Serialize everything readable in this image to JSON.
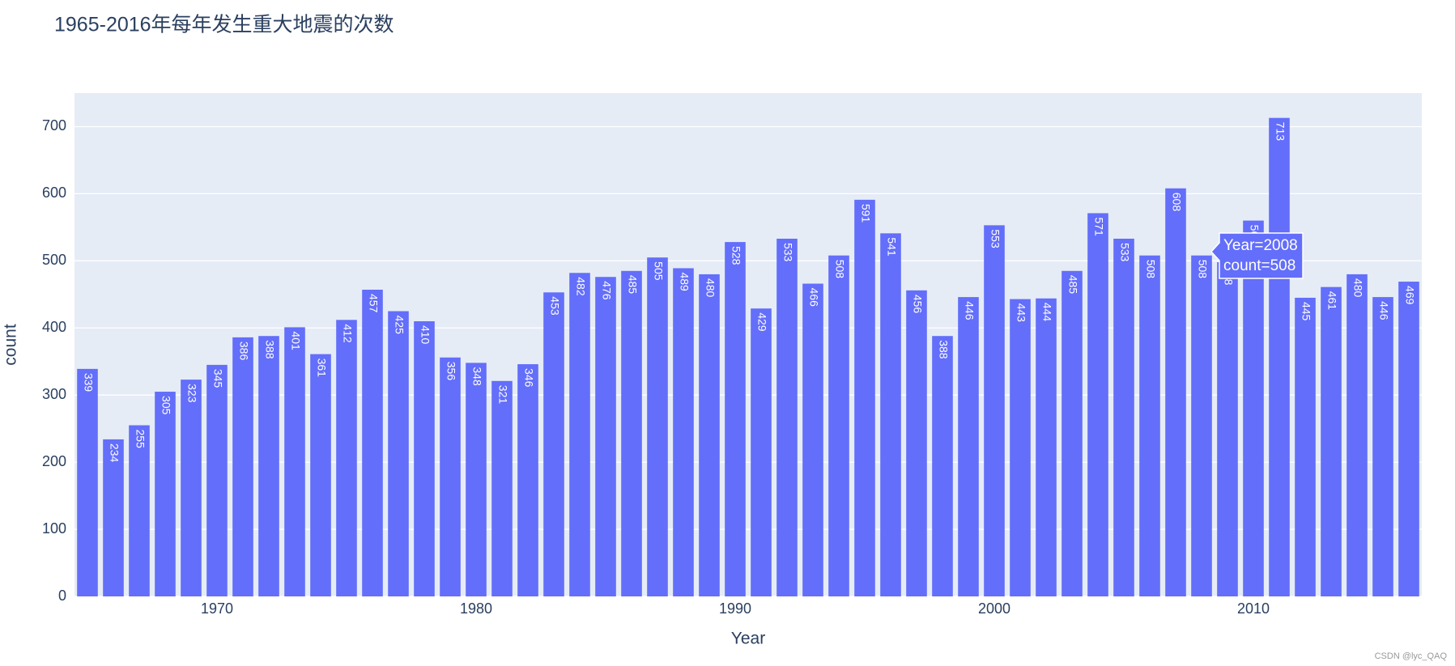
{
  "chart_data": {
    "type": "bar",
    "title": "1965-2016年每年发生重大地震的次数",
    "x_label": "Year",
    "y_label": "count",
    "x": [
      1965,
      1966,
      1967,
      1968,
      1969,
      1970,
      1971,
      1972,
      1973,
      1974,
      1975,
      1976,
      1977,
      1978,
      1979,
      1980,
      1981,
      1982,
      1983,
      1984,
      1985,
      1986,
      1987,
      1988,
      1989,
      1990,
      1991,
      1992,
      1993,
      1994,
      1995,
      1996,
      1997,
      1998,
      1999,
      2000,
      2001,
      2002,
      2003,
      2004,
      2005,
      2006,
      2007,
      2008,
      2009,
      2010,
      2011,
      2012,
      2013,
      2014,
      2015,
      2016
    ],
    "values": [
      339,
      234,
      255,
      305,
      323,
      345,
      386,
      388,
      401,
      361,
      412,
      457,
      425,
      410,
      356,
      348,
      321,
      346,
      453,
      482,
      476,
      485,
      505,
      489,
      480,
      528,
      429,
      533,
      466,
      508,
      591,
      541,
      456,
      388,
      446,
      553,
      443,
      444,
      485,
      571,
      533,
      508,
      608,
      508,
      498,
      560,
      713,
      445,
      461,
      480,
      446,
      469
    ],
    "color": "#636efa",
    "xlim": [
      1964.5,
      2016.5
    ],
    "xticks": [
      1970,
      1980,
      1990,
      2000,
      2010
    ],
    "ylim": [
      0,
      750
    ],
    "yticks": [
      0,
      100,
      200,
      300,
      400,
      500,
      600,
      700
    ],
    "grid": true,
    "tooltip": [
      "Year=2008",
      "count=508"
    ]
  },
  "watermark": "CSDN @lyc_QAQ"
}
